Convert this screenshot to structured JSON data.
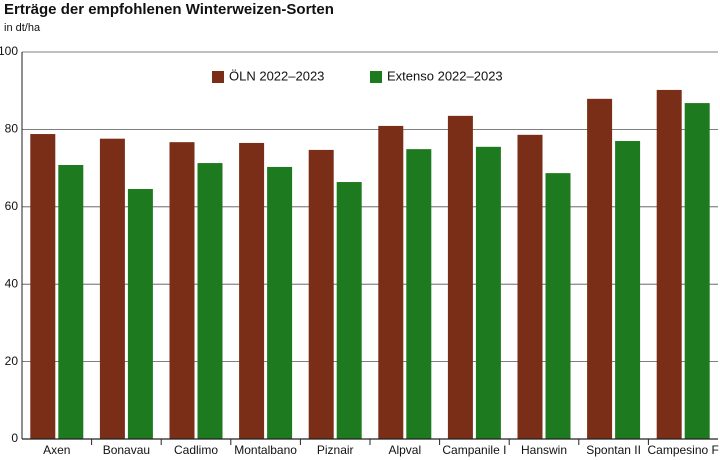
{
  "chart_data": {
    "type": "bar",
    "title": "Erträge der empfohlenen Winterweizen-Sorten",
    "subtitle": "in dt/ha",
    "categories": [
      "Axen",
      "Bonavau",
      "Cadlimo",
      "Montalbano",
      "Piznair",
      "Alpval",
      "Campanile I",
      "Hanswin",
      "Spontan II",
      "Campesino F"
    ],
    "series": [
      {
        "name": "ÖLN 2022–2023",
        "color": "#7a2d17",
        "values": [
          78.8,
          77.6,
          76.7,
          76.5,
          74.7,
          80.9,
          83.5,
          78.6,
          87.9,
          90.2
        ]
      },
      {
        "name": "Extenso 2022–2023",
        "color": "#1e7a1e",
        "values": [
          70.8,
          64.6,
          71.3,
          70.3,
          66.4,
          74.9,
          75.5,
          68.7,
          77.0,
          86.8
        ]
      }
    ],
    "ylim": [
      0,
      100
    ],
    "yticks": [
      0,
      20,
      40,
      60,
      80,
      100
    ],
    "grid": true,
    "legend": "top"
  }
}
